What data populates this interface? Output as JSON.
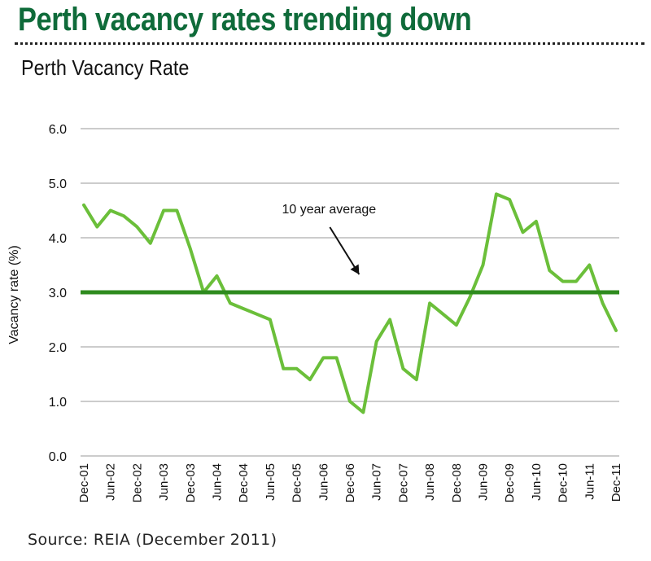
{
  "headline": "Perth vacancy rates trending down",
  "source": "Source: REIA (December 2011)",
  "colors": {
    "headline": "#0f6b3a",
    "series_line": "#6bbf3a",
    "average_line": "#2e8b1e",
    "grid": "#9a9a9a",
    "axis_text": "#111111"
  },
  "chart_data": {
    "type": "line",
    "title": "Perth Vacancy Rate",
    "ylabel": "Vacancy rate (%)",
    "xlabel": "",
    "ylim": [
      0,
      6
    ],
    "yticks": [
      "0.0",
      "1.0",
      "2.0",
      "3.0",
      "4.0",
      "5.0",
      "6.0"
    ],
    "grid": true,
    "x": [
      "Dec-01",
      "Mar-02",
      "Jun-02",
      "Sep-02",
      "Dec-02",
      "Mar-03",
      "Jun-03",
      "Sep-03",
      "Dec-03",
      "Mar-04",
      "Jun-04",
      "Sep-04",
      "Dec-04",
      "Mar-05",
      "Jun-05",
      "Sep-05",
      "Dec-05",
      "Mar-06",
      "Jun-06",
      "Sep-06",
      "Dec-06",
      "Mar-07",
      "Jun-07",
      "Sep-07",
      "Dec-07",
      "Mar-08",
      "Jun-08",
      "Sep-08",
      "Dec-08",
      "Mar-09",
      "Jun-09",
      "Sep-09",
      "Dec-09",
      "Mar-10",
      "Jun-10",
      "Sep-10",
      "Dec-10",
      "Mar-11",
      "Jun-11",
      "Sep-11",
      "Dec-11"
    ],
    "xtick_labels": [
      "Dec-01",
      "Jun-02",
      "Dec-02",
      "Jun-03",
      "Dec-03",
      "Jun-04",
      "Dec-04",
      "Jun-05",
      "Dec-05",
      "Jun-06",
      "Dec-06",
      "Jun-07",
      "Dec-07",
      "Jun-08",
      "Dec-08",
      "Jun-09",
      "Dec-09",
      "Jun-10",
      "Dec-10",
      "Jun-11",
      "Dec-11"
    ],
    "series": [
      {
        "values": [
          4.6,
          4.2,
          4.5,
          4.4,
          4.2,
          3.9,
          4.5,
          4.5,
          3.8,
          3.0,
          3.3,
          2.8,
          2.7,
          2.6,
          2.5,
          1.6,
          1.6,
          1.4,
          1.8,
          1.8,
          1.0,
          0.8,
          2.1,
          2.5,
          1.6,
          1.4,
          2.8,
          2.6,
          2.4,
          2.9,
          3.5,
          4.8,
          4.7,
          4.1,
          4.3,
          3.4,
          3.2,
          3.2,
          3.5,
          2.8,
          2.3
        ]
      }
    ],
    "reference_line": {
      "value": 3.0
    },
    "annotation": {
      "text": "10 year average",
      "x": "Mar-07",
      "y": 3.0
    }
  }
}
